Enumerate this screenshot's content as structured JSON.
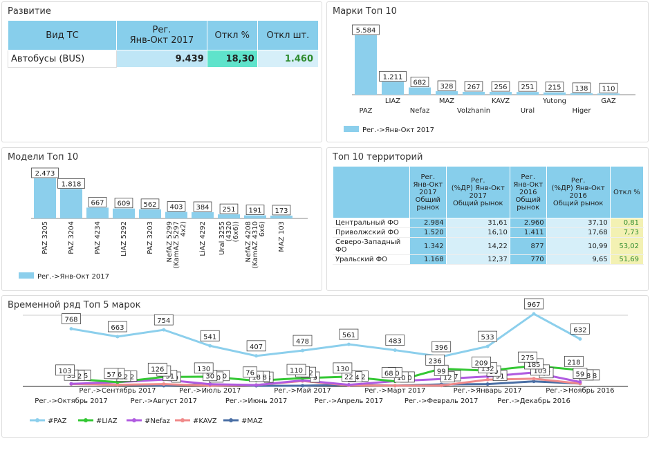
{
  "development": {
    "title": "Развитие",
    "header": [
      "Вид ТС",
      "Рег.\nЯнв-Окт 2017",
      "Откл %",
      "Откл шт."
    ],
    "rows": [
      [
        "Автобусы (BUS)",
        "9.439",
        "18,30",
        "1.460"
      ]
    ]
  },
  "territories": {
    "title": "Топ 10 территорий",
    "header": [
      "Рег.\nЯнв-Окт\n2017\nОбщий\nрынок",
      "Рег.\n(%ДР) Янв-Окт\n2017\nОбщий рынок",
      "Рег.\nЯнв-Окт\n2016\nОбщий\nрынок",
      "Рег.\n(%ДР) Янв-Окт\n2016\nОбщий рынок",
      "Откл %"
    ],
    "rows": [
      [
        "Центральный ФО",
        "2.984",
        "31,61",
        "2.960",
        "37,10",
        "0,81"
      ],
      [
        "Приволжский ФО",
        "1.520",
        "16,10",
        "1.411",
        "17,68",
        "7,73"
      ],
      [
        "Северо-Западный ФО",
        "1.342",
        "14,22",
        "877",
        "10,99",
        "53,02"
      ],
      [
        "Уральский ФО",
        "1.168",
        "12,37",
        "770",
        "9,65",
        "51,69"
      ]
    ]
  },
  "chart_data": [
    {
      "type": "bar",
      "title": "Марки Топ 10",
      "categories": [
        "PAZ",
        "LIAZ",
        "Nefaz",
        "MAZ",
        "Volzhanin",
        "KAVZ",
        "Ural",
        "Yutong",
        "Higer",
        "GAZ"
      ],
      "series": [
        {
          "name": "Рег.->Янв-Окт 2017",
          "color": "#8ccfec",
          "values": [
            5584,
            1211,
            682,
            328,
            267,
            256,
            251,
            215,
            138,
            110
          ],
          "value_labels": [
            "5.584",
            "1.211",
            "682",
            "328",
            "267",
            "256",
            "251",
            "215",
            "138",
            "110"
          ]
        }
      ]
    },
    {
      "type": "bar",
      "title": "Модели Топ 10",
      "categories": [
        "PAZ 3205",
        "PAZ 3204",
        "PAZ 4234",
        "LIAZ 5292",
        "PAZ 3203",
        "NefAZ 5299 (KamAZ 5297 4x2)",
        "LiAZ 4292",
        "Ural 3255 (4320 (6x6))",
        "NefAZ 4208 (KamAZ 4310 6x6)",
        "MAZ 103"
      ],
      "series": [
        {
          "name": "Рег.->Янв-Окт 2017",
          "color": "#8ccfec",
          "values": [
            2473,
            1818,
            667,
            609,
            562,
            403,
            384,
            251,
            191,
            173
          ],
          "value_labels": [
            "2.473",
            "1.818",
            "667",
            "609",
            "562",
            "403",
            "384",
            "251",
            "191",
            "173"
          ]
        }
      ]
    },
    {
      "type": "line",
      "title": "Временной ряд Топ 5 марок",
      "categories": [
        "Рег.->Октябрь 2017",
        "Рег.->Сентябрь 2017",
        "Рег.->Август 2017",
        "Рег.->Июль 2017",
        "Рег.->Июнь 2017",
        "Рег.->Май 2017",
        "Рег.->Апрель 2017",
        "Рег.->Март 2017",
        "Рег.->Февраль 2017",
        "Рег.->Январь 2017",
        "Рег.->Декабрь 2016",
        "Рег.->Ноябрь 2016"
      ],
      "series": [
        {
          "name": "#PAZ",
          "color": "#8ccfec",
          "values": [
            768,
            663,
            754,
            541,
            407,
            478,
            561,
            483,
            396,
            533,
            967,
            632
          ]
        },
        {
          "name": "#LIAZ",
          "color": "#33c733",
          "values": [
            103,
            57,
            126,
            130,
            76,
            110,
            130,
            68,
            236,
            209,
            275,
            218
          ]
        },
        {
          "name": "#Nefaz",
          "color": "#b05be0",
          "values": [
            35,
            56,
            91,
            30,
            18,
            81,
            22,
            70,
            99,
            132,
            185,
            59
          ]
        },
        {
          "name": "#KAVZ",
          "color": "#f08a8a",
          "values": [
            32,
            22,
            31,
            10,
            18,
            72,
            14,
            10,
            12,
            90,
            103,
            38
          ]
        },
        {
          "name": "#MAZ",
          "color": "#4a6fa5",
          "values": [
            35,
            22,
            9,
            30,
            8,
            9,
            22,
            10,
            27,
            31,
            67,
            38
          ]
        }
      ]
    }
  ]
}
